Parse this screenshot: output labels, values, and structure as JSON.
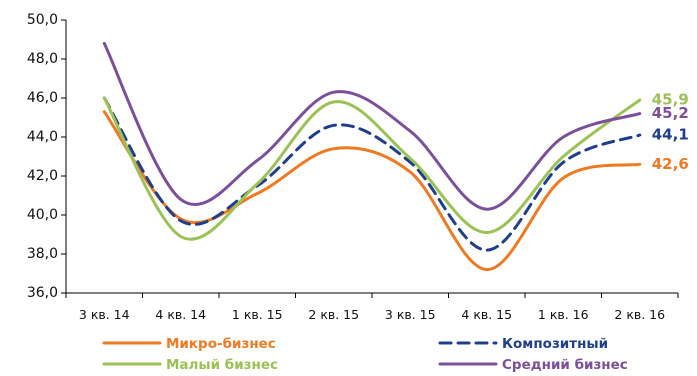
{
  "chart_data": {
    "type": "line",
    "categories": [
      "3 кв. 14",
      "4 кв. 14",
      "1 кв. 15",
      "2 кв. 15",
      "3 кв. 15",
      "4 кв. 15",
      "1 кв. 16",
      "2 кв. 16"
    ],
    "ylim": [
      36.0,
      50.0
    ],
    "yticks": [
      "36,0",
      "38,0",
      "40,0",
      "42,0",
      "44,0",
      "46,0",
      "48,0",
      "50,0"
    ],
    "grid": false,
    "legend_position": "bottom",
    "series": [
      {
        "name": "Микро-бизнес",
        "color": "#f07a22",
        "dash": "solid",
        "values": [
          45.3,
          39.8,
          41.1,
          43.4,
          42.2,
          37.2,
          41.9,
          42.6
        ],
        "end_label": "42,6"
      },
      {
        "name": "Композитный",
        "color": "#1f3f8c",
        "dash": "dashed",
        "values": [
          46.0,
          39.7,
          41.5,
          44.6,
          42.7,
          38.2,
          42.7,
          44.1
        ],
        "end_label": "44,1"
      },
      {
        "name": "Малый бизнес",
        "color": "#9ac254",
        "dash": "solid",
        "values": [
          46.0,
          38.9,
          41.6,
          45.8,
          42.9,
          39.1,
          43.0,
          45.9
        ],
        "end_label": "45,9"
      },
      {
        "name": "Средний бизнес",
        "color": "#7c4f9b",
        "dash": "solid",
        "values": [
          48.8,
          40.8,
          42.8,
          46.3,
          44.3,
          40.3,
          44.0,
          45.2
        ],
        "end_label": "45,2"
      }
    ]
  }
}
